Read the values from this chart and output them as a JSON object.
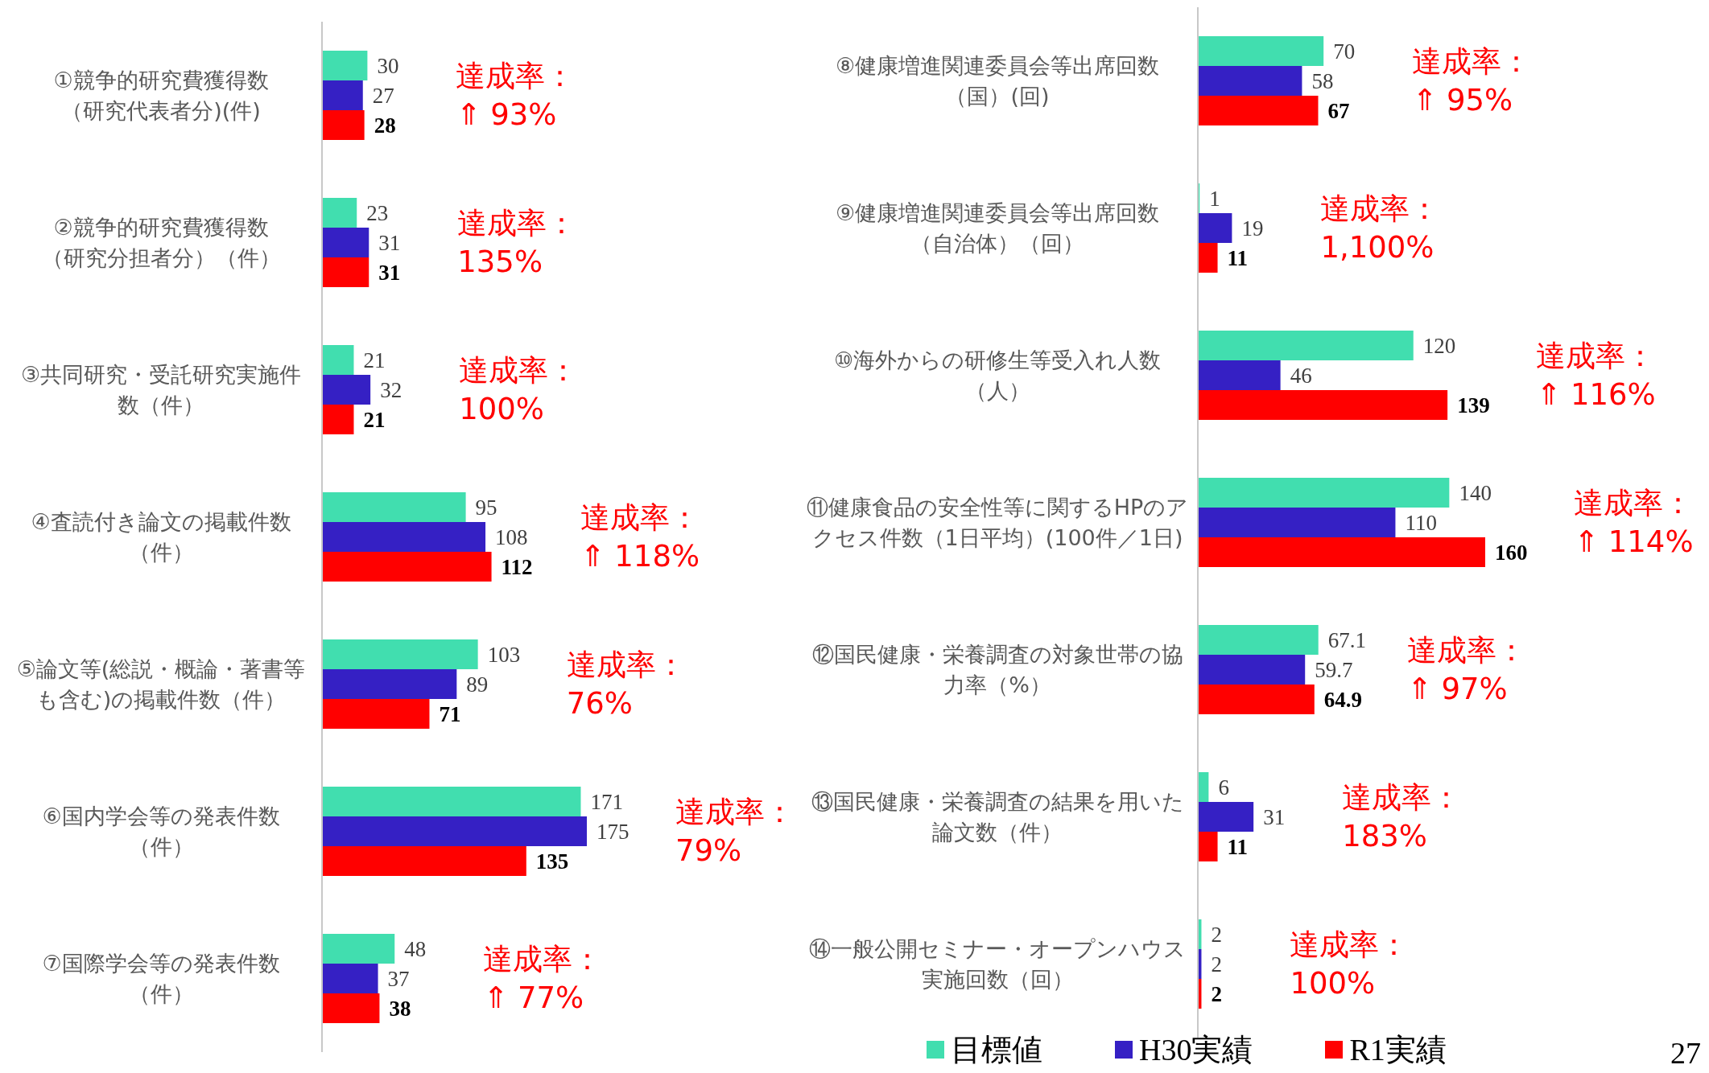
{
  "chart_data": [
    {
      "type": "bar",
      "orientation": "horizontal",
      "data_labels": true,
      "legend": false,
      "categories": [
        "①競争的研究費獲得数（研究代表者分)(件)",
        "②競争的研究費獲得数（研究分担者分）（件）",
        "③共同研究・受託研究実施件数（件）",
        "④査読付き論文の掲載件数（件）",
        "⑤論文等(総説・概論・著書等も含む)の掲載件数（件）",
        "⑥国内学会等の発表件数（件）",
        "⑦国際学会等の発表件数（件）"
      ],
      "series": [
        {
          "color": "#41deaf",
          "values": [
            30,
            23,
            21,
            95,
            103,
            171,
            48
          ]
        },
        {
          "color": "#3520c4",
          "values": [
            27,
            31,
            32,
            108,
            89,
            175,
            37
          ]
        },
        {
          "color": "#ff0000",
          "values": [
            28,
            31,
            21,
            112,
            71,
            135,
            38
          ]
        }
      ],
      "annotations": [
        "達成率：\n⇑ 93%",
        "達成率：\n135%",
        "達成率：\n100%",
        "達成率：\n⇑ 118%",
        "達成率：\n76%",
        "達成率：\n79%",
        "達成率：\n⇑ 77%"
      ]
    },
    {
      "type": "bar",
      "orientation": "horizontal",
      "data_labels": true,
      "legend": "bottom",
      "categories": [
        "⑧健康増進関連委員会等出席回数（国）(回)",
        "⑨健康増進関連委員会等出席回数（自治体）（回）",
        "⑩海外からの研修生等受入れ人数（人）",
        "⑪健康食品の安全性等に関するHPのアクセス件数（1日平均）(100件／1日)",
        "⑫国民健康・栄養調査の対象世帯の協力率（%）",
        "⑬国民健康・栄養調査の結果を用いた論文数（件）",
        "⑭一般公開セミナー・オープンハウス実施回数（回）"
      ],
      "series": [
        {
          "name": "目標値",
          "color": "#41deaf",
          "values": [
            70,
            1,
            120,
            140,
            67.1,
            6,
            2
          ]
        },
        {
          "name": "H30実績",
          "color": "#3520c4",
          "values": [
            58,
            19,
            46,
            110,
            59.7,
            31,
            2
          ]
        },
        {
          "name": "R1実績",
          "color": "#ff0000",
          "values": [
            67,
            11,
            139,
            160,
            64.9,
            11,
            2
          ]
        }
      ],
      "annotations": [
        "達成率：\n⇑ 95%",
        "達成率：\n1,100%",
        "達成率：\n⇑ 116%",
        "達成率：\n⇑ 114%",
        "達成率：\n⇑ 97%",
        "達成率：\n183%",
        "達成率：\n100%",
        "27"
      ]
    }
  ]
}
